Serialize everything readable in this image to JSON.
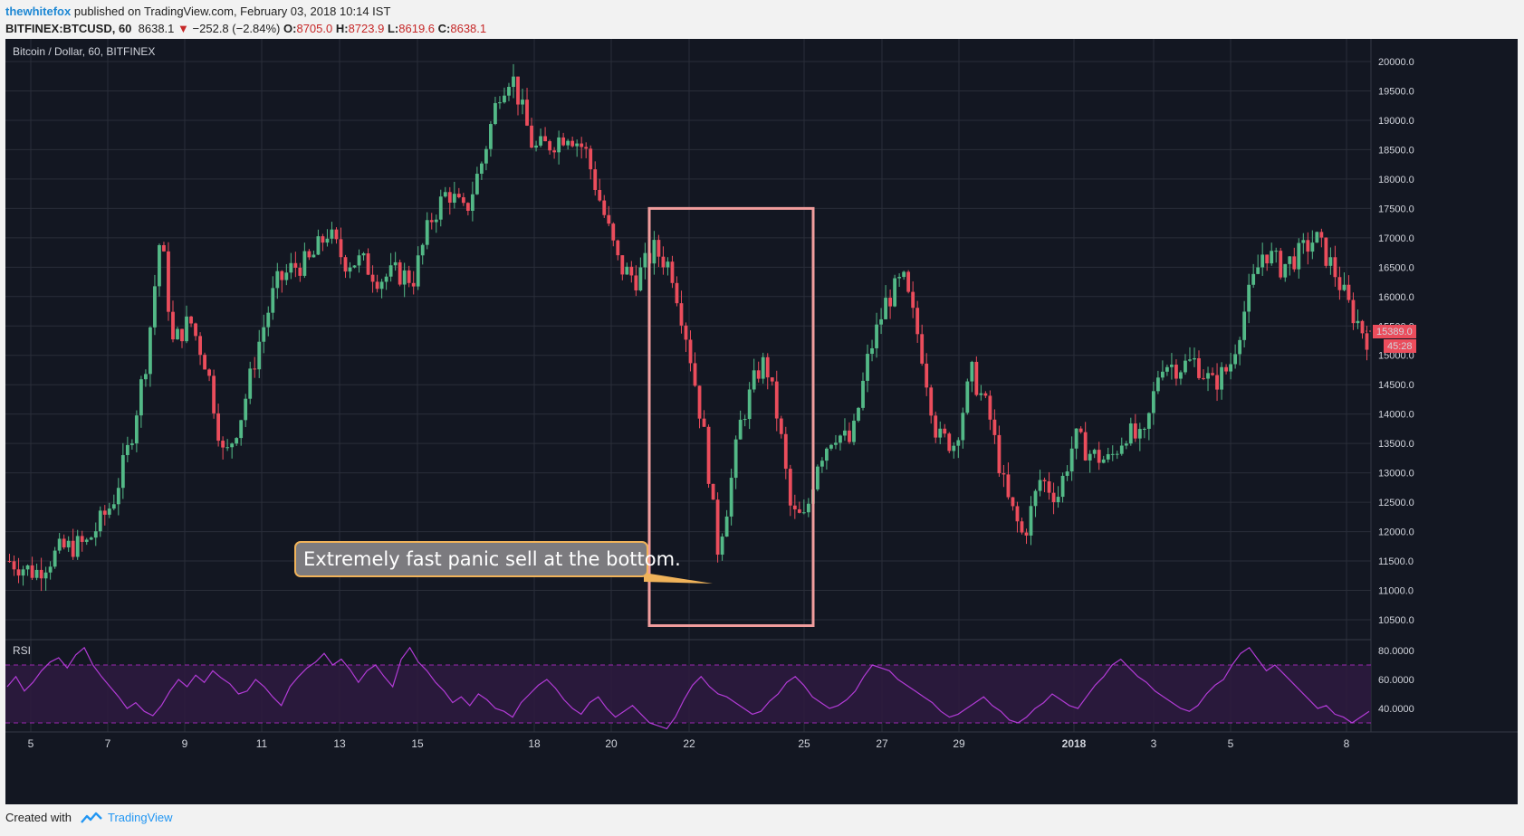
{
  "header": {
    "author": "thewhitefox",
    "published": "published on TradingView.com, February 03, 2018 10:14 IST",
    "symbol": "BITFINEX:BTCUSD, 60",
    "last": "8638.1",
    "arrow": "▼",
    "change": "−252.8 (−2.84%)",
    "o_label": "O:",
    "o_value": "8705.0",
    "h_label": "H:",
    "h_value": "8723.9",
    "l_label": "L:",
    "l_value": "8619.6",
    "c_label": "C:",
    "c_value": "8638.1"
  },
  "footer": {
    "created": "Created with",
    "brand": "TradingView"
  },
  "chart_data": {
    "type": "candlestick",
    "title": "Bitcoin / Dollar, 60, BITFINEX",
    "x_tick_labels": [
      "5",
      "7",
      "9",
      "11",
      "13",
      "15",
      "18",
      "20",
      "22",
      "25",
      "27",
      "29",
      "2018",
      "3",
      "5",
      "8"
    ],
    "y_tick_labels": [
      "10500.0",
      "11000.0",
      "11500.0",
      "12000.0",
      "12500.0",
      "13000.0",
      "13500.0",
      "14000.0",
      "14500.0",
      "15000.0",
      "15500.0",
      "16000.0",
      "16500.0",
      "17000.0",
      "17500.0",
      "18000.0",
      "18500.0",
      "19000.0",
      "19500.0",
      "20000.0"
    ],
    "ylim": [
      10200,
      20300
    ],
    "grid": true,
    "price_path": [
      {
        "x": 0.0,
        "y": 11500
      },
      {
        "x": 1.5,
        "y": 11300
      },
      {
        "x": 3.0,
        "y": 11700
      },
      {
        "x": 4.5,
        "y": 11800
      },
      {
        "x": 6.0,
        "y": 12500
      },
      {
        "x": 7.0,
        "y": 13500
      },
      {
        "x": 8.0,
        "y": 15000
      },
      {
        "x": 8.8,
        "y": 17100
      },
      {
        "x": 9.5,
        "y": 15200
      },
      {
        "x": 10.5,
        "y": 15600
      },
      {
        "x": 11.5,
        "y": 14800
      },
      {
        "x": 12.5,
        "y": 13200
      },
      {
        "x": 13.5,
        "y": 14000
      },
      {
        "x": 14.5,
        "y": 15200
      },
      {
        "x": 15.5,
        "y": 16200
      },
      {
        "x": 16.5,
        "y": 16500
      },
      {
        "x": 17.5,
        "y": 16600
      },
      {
        "x": 18.5,
        "y": 17100
      },
      {
        "x": 19.5,
        "y": 16600
      },
      {
        "x": 20.5,
        "y": 16600
      },
      {
        "x": 21.5,
        "y": 16300
      },
      {
        "x": 22.5,
        "y": 16400
      },
      {
        "x": 23.5,
        "y": 16300
      },
      {
        "x": 24.5,
        "y": 17300
      },
      {
        "x": 25.5,
        "y": 17800
      },
      {
        "x": 26.5,
        "y": 17400
      },
      {
        "x": 27.5,
        "y": 18300
      },
      {
        "x": 28.5,
        "y": 19500
      },
      {
        "x": 29.2,
        "y": 19800
      },
      {
        "x": 29.8,
        "y": 19200
      },
      {
        "x": 30.5,
        "y": 18500
      },
      {
        "x": 31.5,
        "y": 18600
      },
      {
        "x": 32.5,
        "y": 18800
      },
      {
        "x": 33.5,
        "y": 18500
      },
      {
        "x": 34.5,
        "y": 17500
      },
      {
        "x": 35.5,
        "y": 16500
      },
      {
        "x": 36.5,
        "y": 16300
      },
      {
        "x": 37.5,
        "y": 16800
      },
      {
        "x": 38.5,
        "y": 16500
      },
      {
        "x": 39.5,
        "y": 15200
      },
      {
        "x": 40.5,
        "y": 13500
      },
      {
        "x": 41.2,
        "y": 11700
      },
      {
        "x": 41.8,
        "y": 12500
      },
      {
        "x": 42.5,
        "y": 13800
      },
      {
        "x": 43.5,
        "y": 14700
      },
      {
        "x": 44.0,
        "y": 14900
      },
      {
        "x": 44.8,
        "y": 13800
      },
      {
        "x": 45.5,
        "y": 12300
      },
      {
        "x": 46.3,
        "y": 12200
      },
      {
        "x": 47.0,
        "y": 13200
      },
      {
        "x": 48.0,
        "y": 13700
      },
      {
        "x": 49.0,
        "y": 13500
      },
      {
        "x": 50.0,
        "y": 15000
      },
      {
        "x": 51.0,
        "y": 15900
      },
      {
        "x": 52.0,
        "y": 16300
      },
      {
        "x": 53.0,
        "y": 15200
      },
      {
        "x": 54.0,
        "y": 13600
      },
      {
        "x": 55.0,
        "y": 13500
      },
      {
        "x": 56.0,
        "y": 14700
      },
      {
        "x": 57.0,
        "y": 14000
      },
      {
        "x": 58.0,
        "y": 12600
      },
      {
        "x": 59.0,
        "y": 11900
      },
      {
        "x": 60.0,
        "y": 12900
      },
      {
        "x": 61.0,
        "y": 12600
      },
      {
        "x": 62.0,
        "y": 13600
      },
      {
        "x": 63.0,
        "y": 13300
      },
      {
        "x": 64.0,
        "y": 13200
      },
      {
        "x": 65.0,
        "y": 13700
      },
      {
        "x": 66.0,
        "y": 13500
      },
      {
        "x": 67.0,
        "y": 14900
      },
      {
        "x": 68.0,
        "y": 14800
      },
      {
        "x": 69.0,
        "y": 14900
      },
      {
        "x": 70.0,
        "y": 14500
      },
      {
        "x": 71.0,
        "y": 14800
      },
      {
        "x": 72.0,
        "y": 15900
      },
      {
        "x": 73.0,
        "y": 16800
      },
      {
        "x": 74.0,
        "y": 16500
      },
      {
        "x": 75.0,
        "y": 16700
      },
      {
        "x": 76.0,
        "y": 17000
      },
      {
        "x": 77.0,
        "y": 16500
      },
      {
        "x": 78.0,
        "y": 15800
      },
      {
        "x": 79.0,
        "y": 15300
      }
    ],
    "last_price_label": "15389.0",
    "countdown_label": "45:28",
    "highlight_box": {
      "y_top": 17500,
      "y_bottom": 10400
    },
    "annotation": {
      "text": "Extremely fast panic sell at the bottom.",
      "pointer_price": 11100
    },
    "rsi": {
      "label": "RSI",
      "y_tick_labels": [
        "40.0000",
        "60.0000",
        "80.0000"
      ],
      "ylim": [
        25,
        85
      ],
      "bands": [
        30,
        70
      ],
      "values": [
        55,
        62,
        52,
        58,
        66,
        72,
        75,
        68,
        77,
        82,
        70,
        62,
        55,
        48,
        40,
        44,
        38,
        35,
        42,
        52,
        60,
        55,
        63,
        58,
        66,
        61,
        57,
        50,
        52,
        60,
        55,
        48,
        42,
        55,
        62,
        68,
        72,
        78,
        70,
        74,
        67,
        58,
        66,
        70,
        62,
        55,
        74,
        82,
        72,
        66,
        58,
        52,
        44,
        48,
        42,
        50,
        46,
        40,
        38,
        34,
        44,
        50,
        56,
        60,
        54,
        46,
        40,
        36,
        44,
        48,
        40,
        34,
        38,
        42,
        36,
        30,
        28,
        26,
        34,
        46,
        56,
        62,
        55,
        50,
        48,
        44,
        40,
        36,
        38,
        45,
        50,
        58,
        62,
        56,
        48,
        44,
        40,
        42,
        46,
        52,
        62,
        70,
        68,
        66,
        60,
        56,
        52,
        48,
        44,
        38,
        34,
        36,
        40,
        44,
        48,
        42,
        38,
        32,
        30,
        34,
        40,
        44,
        50,
        46,
        42,
        40,
        48,
        56,
        62,
        70,
        74,
        68,
        62,
        58,
        52,
        48,
        44,
        40,
        38,
        42,
        50,
        56,
        60,
        70,
        78,
        82,
        74,
        66,
        70,
        64,
        58,
        52,
        46,
        40,
        42,
        36,
        34,
        30,
        34,
        38
      ]
    }
  }
}
